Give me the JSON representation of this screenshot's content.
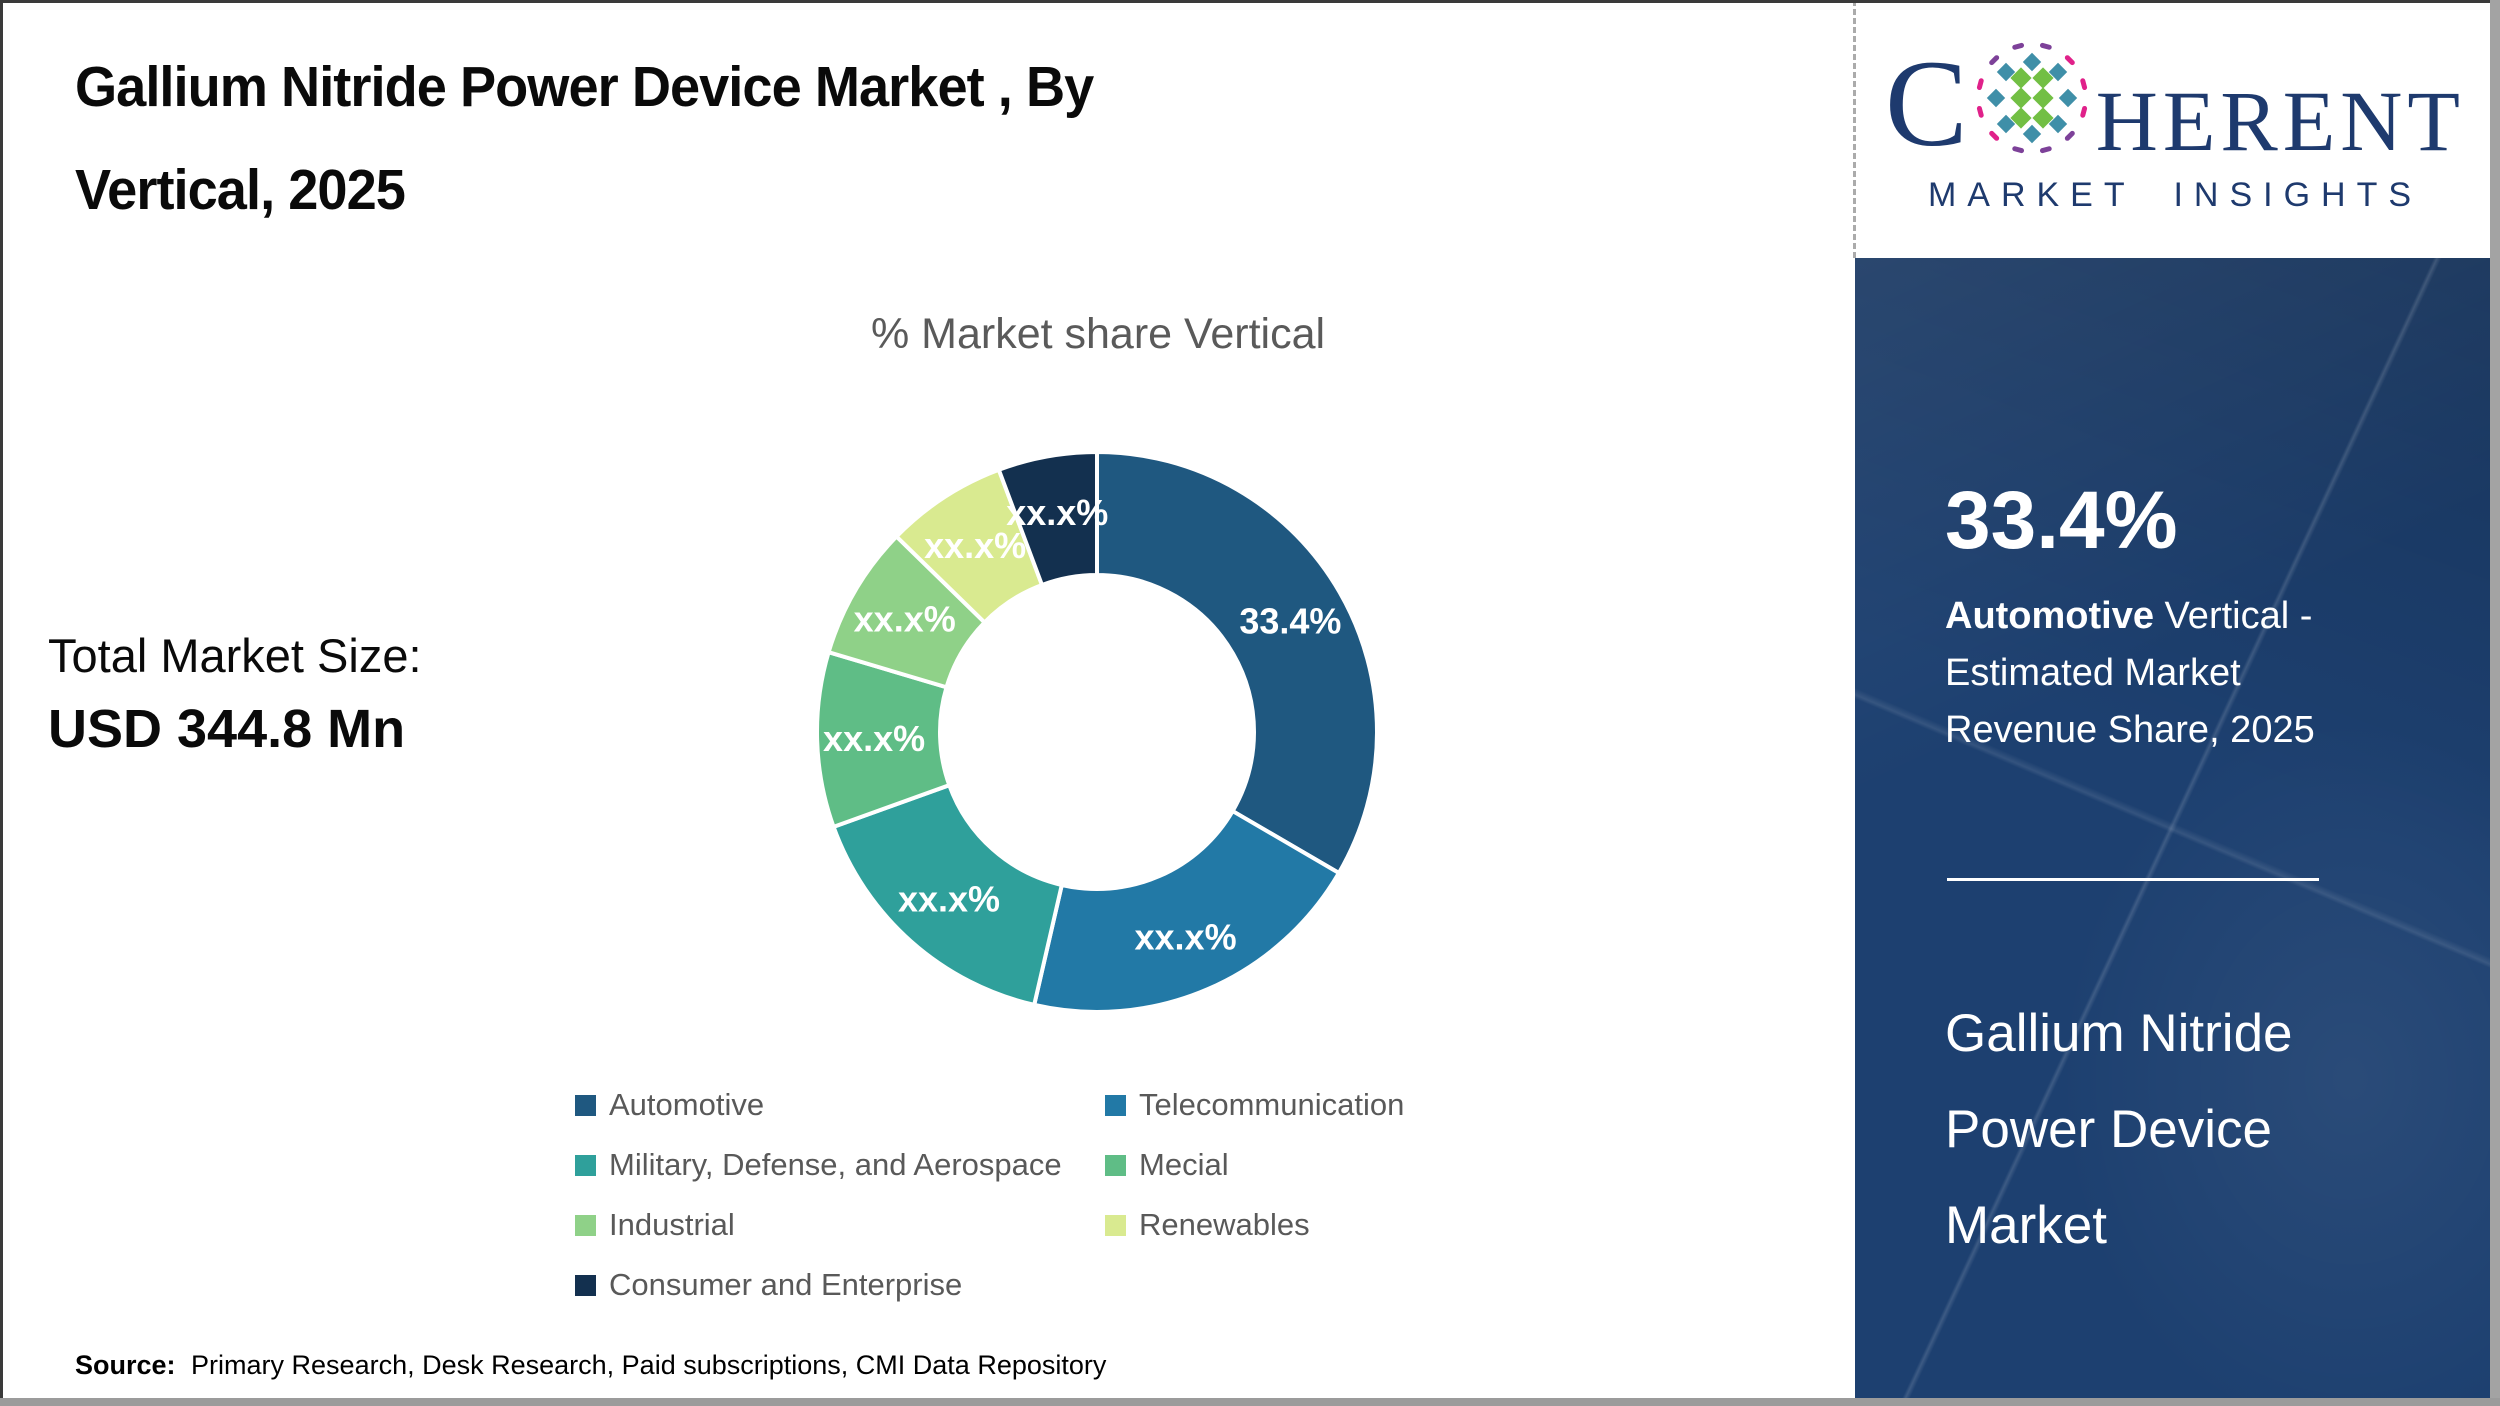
{
  "title": {
    "line1": "Gallium Nitride Power Device Market , By",
    "line2": "Vertical, 2025"
  },
  "logo": {
    "c": "C",
    "rest": "HERENT",
    "tagline": "MARKET INSIGHTS",
    "colors": {
      "navy": "#1e3a6e",
      "teal": "#3f8fa8",
      "green": "#72bf44",
      "magenta": "#e0218a",
      "purple": "#7d4199"
    }
  },
  "total_market": {
    "label": "Total Market Size:",
    "value": "USD 344.8 Mn"
  },
  "chart_data": {
    "type": "pie",
    "donut": true,
    "title": "% Market share Vertical",
    "start_angle_deg": 0,
    "direction": "clockwise",
    "legend_position": "bottom",
    "legend_columns": 2,
    "segments": [
      {
        "label": "Automotive",
        "display_label": "33.4%",
        "value_pct": 33.4,
        "masked": false,
        "color": "#1f5880"
      },
      {
        "label": "Telecommunication",
        "display_label": "xx.x%",
        "value_pct": 20.2,
        "masked": true,
        "color": "#2279a6"
      },
      {
        "label": "Military, Defense, and Aerospace",
        "display_label": "xx.x%",
        "value_pct": 15.9,
        "masked": true,
        "color": "#2fa09b"
      },
      {
        "label": "Mecial",
        "display_label": "xx.x%",
        "value_pct": 10.1,
        "masked": true,
        "color": "#5fbd86"
      },
      {
        "label": "Industrial",
        "display_label": "xx.x%",
        "value_pct": 7.7,
        "masked": true,
        "color": "#8fd188"
      },
      {
        "label": "Renewables",
        "display_label": "xx.x%",
        "value_pct": 7.0,
        "masked": true,
        "color": "#d9ea90"
      },
      {
        "label": "Consumer and Enterprise",
        "display_label": "xx.x%",
        "value_pct": 5.7,
        "masked": true,
        "color": "#13304f"
      }
    ]
  },
  "sidebar": {
    "panel_color": "#1d4070",
    "stat_value": "33.4%",
    "desc_bold": "Automotive",
    "desc_line1_rest": " Vertical -",
    "desc_line2": "Estimated Market",
    "desc_line3": "Revenue Share, 2025",
    "product_line1": "Gallium Nitride",
    "product_line2": "Power Device",
    "product_line3": "Market"
  },
  "footer": {
    "source_label": "Source:",
    "source_text": "Primary Research, Desk Research, Paid subscriptions, CMI Data Repository"
  }
}
